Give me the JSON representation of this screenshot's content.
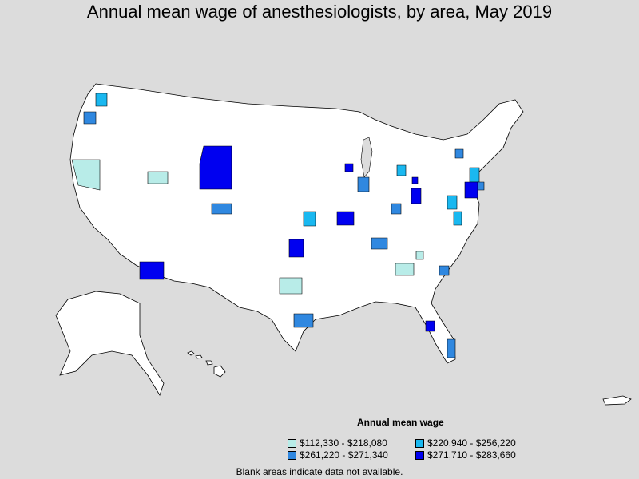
{
  "title": "Annual mean wage of anesthesiologists, by area, May 2019",
  "legend": {
    "title": "Annual mean wage",
    "items": [
      {
        "label": "$112,330 - $218,080",
        "color": "#b8ece8"
      },
      {
        "label": "$220,940 - $256,220",
        "color": "#1ab8f0"
      },
      {
        "label": "$261,220 - $271,340",
        "color": "#3088e0"
      },
      {
        "label": "$271,710 - $283,660",
        "color": "#0000f0"
      }
    ]
  },
  "note": "Blank areas indicate data not available.",
  "colors": {
    "background": "#dcdcdc",
    "land": "#ffffff",
    "border": "#000000"
  }
}
